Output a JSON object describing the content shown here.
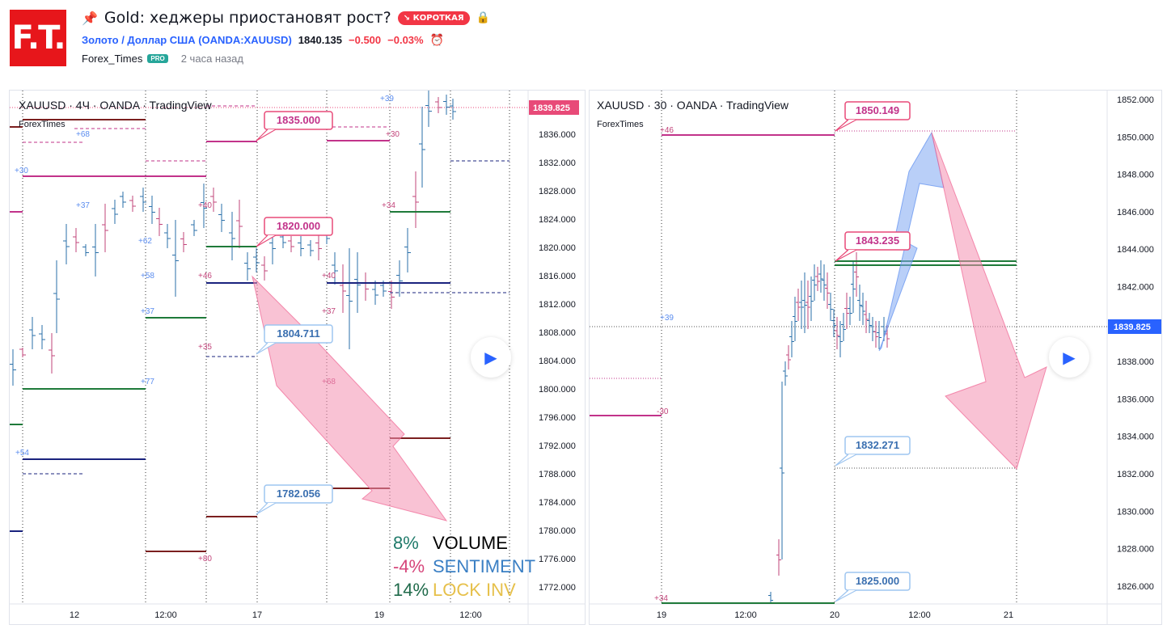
{
  "header": {
    "logo_text": "F.T.",
    "pin_icon": "pin-icon",
    "title": "Gold: хеджеры приостановят рост?",
    "badge": "↘ КОРОТКАЯ",
    "symbol_link": "Золото / Доллар США (OANDA:XAUUSD)",
    "last_price": "1840.135",
    "change": "−0.500",
    "change_pct": "−0.03%",
    "author": "Forex_Times",
    "author_badge": "PRO",
    "time_ago": "2 часа назад"
  },
  "chart1": {
    "legend": "XAUUSD · 4Ч · OANDA · TradingView",
    "sublegend": "ForexTimes",
    "price_tag": "1839.825",
    "y_ticks": [
      "1836.000",
      "1832.000",
      "1828.000",
      "1824.000",
      "1820.000",
      "1816.000",
      "1812.000",
      "1808.000",
      "1804.000",
      "1800.000",
      "1796.000",
      "1792.000",
      "1788.000",
      "1784.000",
      "1780.000",
      "1776.000",
      "1772.000"
    ],
    "x_ticks": [
      "12",
      "12:00",
      "17",
      "19",
      "12:00"
    ],
    "callouts": [
      "1835.000",
      "1820.000",
      "1804.711",
      "1782.056"
    ],
    "stats": [
      {
        "pct": "8%",
        "label": "VOLUME"
      },
      {
        "pct": "-4%",
        "label": "SENTIMENT"
      },
      {
        "pct": "14%",
        "label": "LOCK INV"
      }
    ],
    "small_labels": [
      "+68",
      "+30",
      "+37",
      "+62",
      "+58",
      "+37",
      "+77",
      "+54",
      "+40",
      "+46",
      "+35",
      "+80",
      "+30",
      "+34",
      "+40",
      "+37",
      "+68",
      "+39"
    ]
  },
  "chart2": {
    "legend": "XAUUSD · 30 · OANDA · TradingView",
    "sublegend": "ForexTimes",
    "price_tag": "1839.825",
    "y_ticks": [
      "1852.000",
      "1850.000",
      "1848.000",
      "1846.000",
      "1844.000",
      "1842.000",
      "1840.000",
      "1838.000",
      "1836.000",
      "1834.000",
      "1832.000",
      "1830.000",
      "1828.000",
      "1826.000"
    ],
    "x_ticks": [
      "19",
      "12:00",
      "20",
      "12:00",
      "21"
    ],
    "callouts": [
      "1850.149",
      "1843.235",
      "1832.271",
      "1825.000"
    ],
    "small_labels": [
      "+46",
      "+39",
      "-30",
      "+34"
    ]
  },
  "colors": {
    "accent": "#f23645",
    "link": "#2962ff",
    "up": "#2a6fa8",
    "down": "#c2447a",
    "green": "#1f7a3a",
    "navy": "#1a237e",
    "maroon": "#7b1f1f",
    "magenta": "#c2338a"
  }
}
